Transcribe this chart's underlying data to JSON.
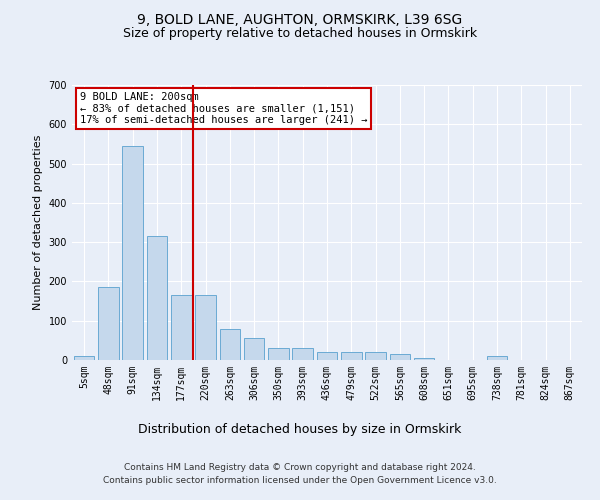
{
  "title1": "9, BOLD LANE, AUGHTON, ORMSKIRK, L39 6SG",
  "title2": "Size of property relative to detached houses in Ormskirk",
  "xlabel": "Distribution of detached houses by size in Ormskirk",
  "ylabel": "Number of detached properties",
  "categories": [
    "5sqm",
    "48sqm",
    "91sqm",
    "134sqm",
    "177sqm",
    "220sqm",
    "263sqm",
    "306sqm",
    "350sqm",
    "393sqm",
    "436sqm",
    "479sqm",
    "522sqm",
    "565sqm",
    "608sqm",
    "651sqm",
    "695sqm",
    "738sqm",
    "781sqm",
    "824sqm",
    "867sqm"
  ],
  "values": [
    10,
    185,
    545,
    315,
    165,
    165,
    80,
    55,
    30,
    30,
    20,
    20,
    20,
    15,
    5,
    0,
    0,
    10,
    0,
    0,
    0
  ],
  "bar_color": "#c5d8ec",
  "bar_edge_color": "#6aaad4",
  "vline_color": "#cc0000",
  "annotation_text": "9 BOLD LANE: 200sqm\n← 83% of detached houses are smaller (1,151)\n17% of semi-detached houses are larger (241) →",
  "annotation_box_color": "#ffffff",
  "annotation_box_edge": "#cc0000",
  "ylim": [
    0,
    700
  ],
  "yticks": [
    0,
    100,
    200,
    300,
    400,
    500,
    600,
    700
  ],
  "footer1": "Contains HM Land Registry data © Crown copyright and database right 2024.",
  "footer2": "Contains public sector information licensed under the Open Government Licence v3.0.",
  "bg_color": "#e8eef8",
  "plot_bg_color": "#e8eef8",
  "grid_color": "#ffffff",
  "title1_fontsize": 10,
  "title2_fontsize": 9,
  "ylabel_fontsize": 8,
  "xlabel_fontsize": 9,
  "tick_fontsize": 7,
  "footer_fontsize": 6.5
}
